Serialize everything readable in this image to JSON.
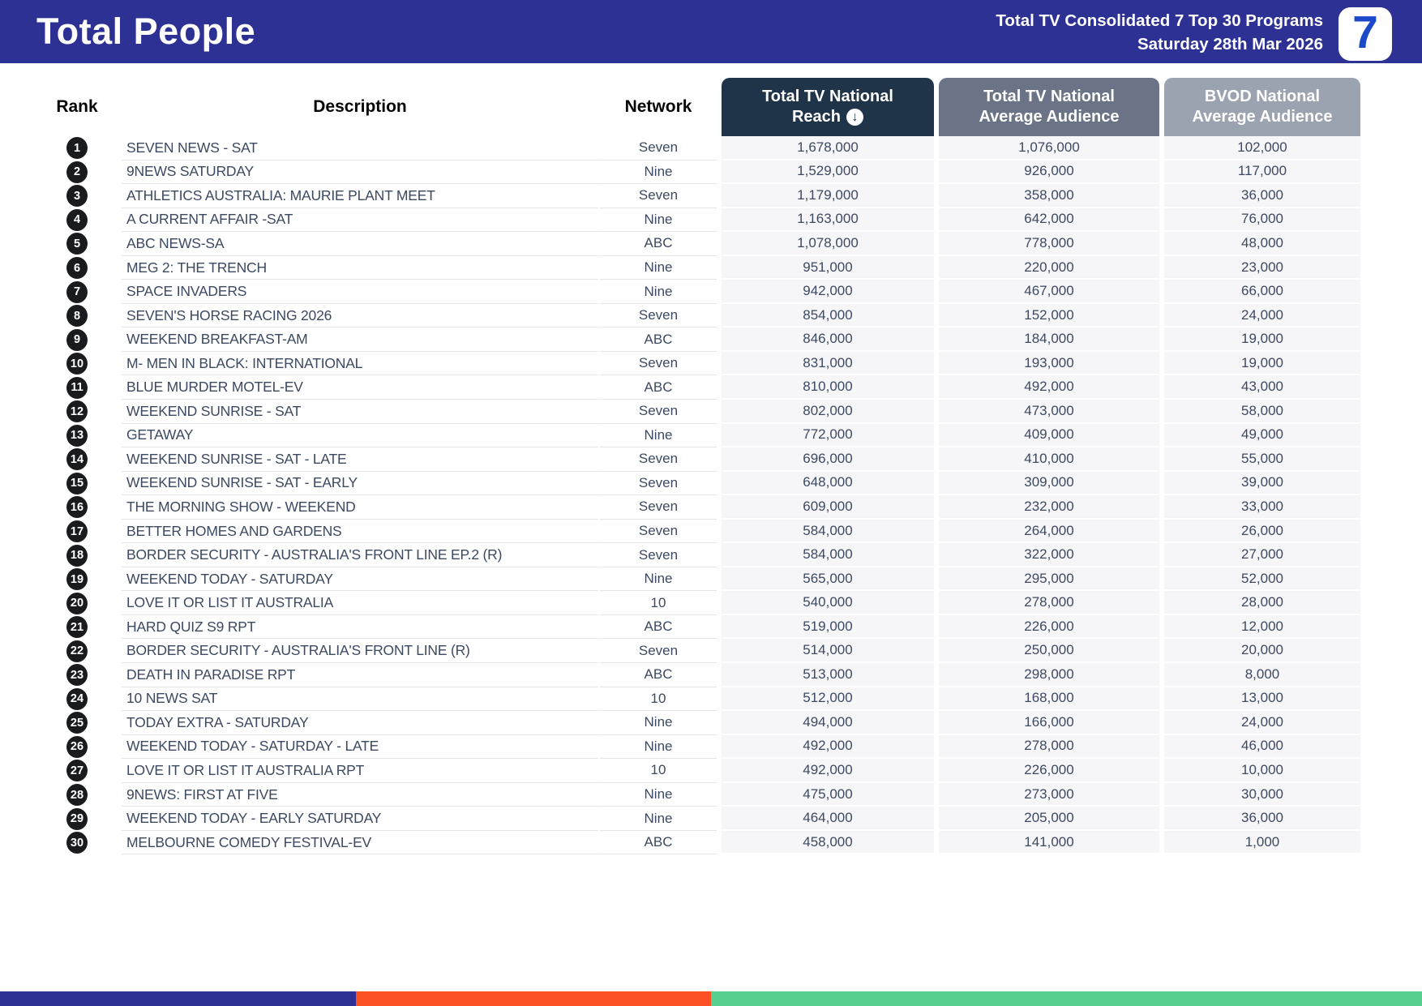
{
  "header": {
    "title": "Total People",
    "subtitle_line1": "Total TV Consolidated 7 Top 30 Programs",
    "subtitle_line2": "Saturday 28th Mar 2026",
    "logo_text": "7"
  },
  "icons": {
    "sort_desc": "↓"
  },
  "colors": {
    "banner_bg": "#2d3193",
    "reach_header_bg": "#203449",
    "avg_header_bg": "#6b7486",
    "bvod_header_bg": "#9ca3b0",
    "footer_blue": "#2d3193",
    "footer_orange": "#fb5125",
    "footer_green": "#57cf8d",
    "row_text": "#3c4961",
    "rank_badge_bg": "#1a1b1e"
  },
  "table": {
    "headers": {
      "rank": "Rank",
      "description": "Description",
      "network": "Network",
      "reach_line1": "Total TV National",
      "reach_line2": "Reach",
      "avg_line1": "Total TV National",
      "avg_line2": "Average Audience",
      "bvod_line1": "BVOD National",
      "bvod_line2": "Average Audience"
    },
    "rows": [
      {
        "rank": "1",
        "description": "SEVEN NEWS - SAT",
        "network": "Seven",
        "reach": "1,678,000",
        "avg": "1,076,000",
        "bvod": "102,000"
      },
      {
        "rank": "2",
        "description": "9NEWS SATURDAY",
        "network": "Nine",
        "reach": "1,529,000",
        "avg": "926,000",
        "bvod": "117,000"
      },
      {
        "rank": "3",
        "description": "ATHLETICS AUSTRALIA: MAURIE PLANT MEET",
        "network": "Seven",
        "reach": "1,179,000",
        "avg": "358,000",
        "bvod": "36,000"
      },
      {
        "rank": "4",
        "description": "A CURRENT AFFAIR -SAT",
        "network": "Nine",
        "reach": "1,163,000",
        "avg": "642,000",
        "bvod": "76,000"
      },
      {
        "rank": "5",
        "description": "ABC NEWS-SA",
        "network": "ABC",
        "reach": "1,078,000",
        "avg": "778,000",
        "bvod": "48,000"
      },
      {
        "rank": "6",
        "description": "MEG 2: THE TRENCH",
        "network": "Nine",
        "reach": "951,000",
        "avg": "220,000",
        "bvod": "23,000"
      },
      {
        "rank": "7",
        "description": "SPACE INVADERS",
        "network": "Nine",
        "reach": "942,000",
        "avg": "467,000",
        "bvod": "66,000"
      },
      {
        "rank": "8",
        "description": "SEVEN'S HORSE RACING 2026",
        "network": "Seven",
        "reach": "854,000",
        "avg": "152,000",
        "bvod": "24,000"
      },
      {
        "rank": "9",
        "description": "WEEKEND BREAKFAST-AM",
        "network": "ABC",
        "reach": "846,000",
        "avg": "184,000",
        "bvod": "19,000"
      },
      {
        "rank": "10",
        "description": "M- MEN IN BLACK: INTERNATIONAL",
        "network": "Seven",
        "reach": "831,000",
        "avg": "193,000",
        "bvod": "19,000"
      },
      {
        "rank": "11",
        "description": "BLUE MURDER MOTEL-EV",
        "network": "ABC",
        "reach": "810,000",
        "avg": "492,000",
        "bvod": "43,000"
      },
      {
        "rank": "12",
        "description": "WEEKEND SUNRISE - SAT",
        "network": "Seven",
        "reach": "802,000",
        "avg": "473,000",
        "bvod": "58,000"
      },
      {
        "rank": "13",
        "description": "GETAWAY",
        "network": "Nine",
        "reach": "772,000",
        "avg": "409,000",
        "bvod": "49,000"
      },
      {
        "rank": "14",
        "description": "WEEKEND SUNRISE - SAT - LATE",
        "network": "Seven",
        "reach": "696,000",
        "avg": "410,000",
        "bvod": "55,000"
      },
      {
        "rank": "15",
        "description": "WEEKEND SUNRISE - SAT - EARLY",
        "network": "Seven",
        "reach": "648,000",
        "avg": "309,000",
        "bvod": "39,000"
      },
      {
        "rank": "16",
        "description": "THE MORNING SHOW - WEEKEND",
        "network": "Seven",
        "reach": "609,000",
        "avg": "232,000",
        "bvod": "33,000"
      },
      {
        "rank": "17",
        "description": "BETTER HOMES AND GARDENS",
        "network": "Seven",
        "reach": "584,000",
        "avg": "264,000",
        "bvod": "26,000"
      },
      {
        "rank": "18",
        "description": "BORDER SECURITY - AUSTRALIA'S FRONT LINE EP.2 (R)",
        "network": "Seven",
        "reach": "584,000",
        "avg": "322,000",
        "bvod": "27,000"
      },
      {
        "rank": "19",
        "description": "WEEKEND TODAY - SATURDAY",
        "network": "Nine",
        "reach": "565,000",
        "avg": "295,000",
        "bvod": "52,000"
      },
      {
        "rank": "20",
        "description": "LOVE IT OR LIST IT AUSTRALIA",
        "network": "10",
        "reach": "540,000",
        "avg": "278,000",
        "bvod": "28,000"
      },
      {
        "rank": "21",
        "description": "HARD QUIZ S9 RPT",
        "network": "ABC",
        "reach": "519,000",
        "avg": "226,000",
        "bvod": "12,000"
      },
      {
        "rank": "22",
        "description": "BORDER SECURITY - AUSTRALIA'S FRONT LINE (R)",
        "network": "Seven",
        "reach": "514,000",
        "avg": "250,000",
        "bvod": "20,000"
      },
      {
        "rank": "23",
        "description": "DEATH IN PARADISE RPT",
        "network": "ABC",
        "reach": "513,000",
        "avg": "298,000",
        "bvod": "8,000"
      },
      {
        "rank": "24",
        "description": "10 NEWS SAT",
        "network": "10",
        "reach": "512,000",
        "avg": "168,000",
        "bvod": "13,000"
      },
      {
        "rank": "25",
        "description": "TODAY EXTRA - SATURDAY",
        "network": "Nine",
        "reach": "494,000",
        "avg": "166,000",
        "bvod": "24,000"
      },
      {
        "rank": "26",
        "description": "WEEKEND TODAY - SATURDAY - LATE",
        "network": "Nine",
        "reach": "492,000",
        "avg": "278,000",
        "bvod": "46,000"
      },
      {
        "rank": "27",
        "description": "LOVE IT OR LIST IT AUSTRALIA RPT",
        "network": "10",
        "reach": "492,000",
        "avg": "226,000",
        "bvod": "10,000"
      },
      {
        "rank": "28",
        "description": "9NEWS: FIRST AT FIVE",
        "network": "Nine",
        "reach": "475,000",
        "avg": "273,000",
        "bvod": "30,000"
      },
      {
        "rank": "29",
        "description": "WEEKEND TODAY - EARLY SATURDAY",
        "network": "Nine",
        "reach": "464,000",
        "avg": "205,000",
        "bvod": "36,000"
      },
      {
        "rank": "30",
        "description": "MELBOURNE COMEDY FESTIVAL-EV",
        "network": "ABC",
        "reach": "458,000",
        "avg": "141,000",
        "bvod": "1,000"
      }
    ]
  }
}
